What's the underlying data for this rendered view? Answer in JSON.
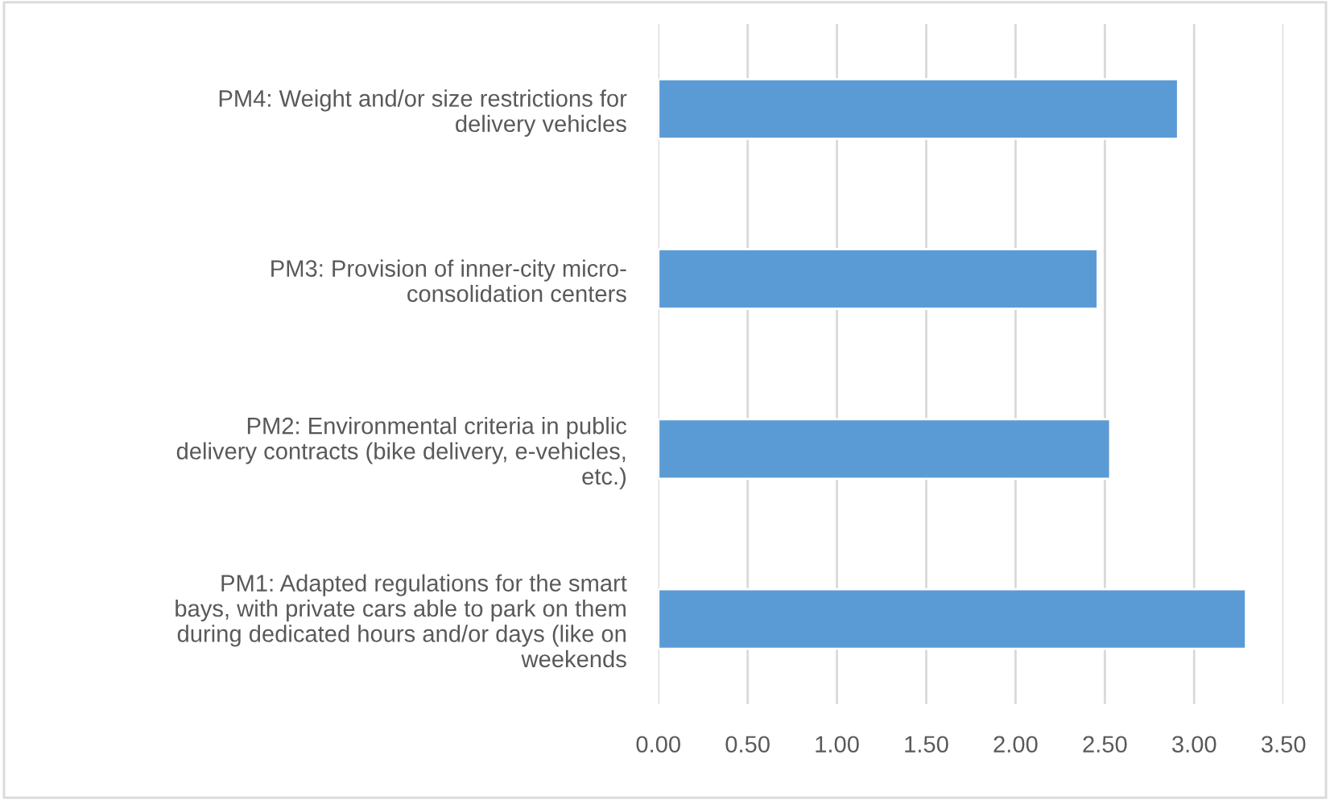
{
  "chart_data": {
    "type": "bar",
    "orientation": "horizontal",
    "categories": [
      "PM4: Weight and/or size restrictions for\ndelivery vehicles",
      "PM3: Provision of inner-city micro-\nconsolidation centers",
      "PM2: Environmental criteria in public\ndelivery contracts (bike delivery, e-vehicles,\netc.)",
      "PM1: Adapted regulations for the smart\nbays, with private cars able to park on them\nduring dedicated hours and/or days (like on\nweekends"
    ],
    "values": [
      2.91,
      2.46,
      2.53,
      3.29
    ],
    "color": "#5b9bd5",
    "xlim": [
      0,
      3.5
    ],
    "xticks": [
      {
        "value": 0,
        "label": "0.00"
      },
      {
        "value": 0.5,
        "label": "0.50"
      },
      {
        "value": 1,
        "label": "1.00"
      },
      {
        "value": 1.5,
        "label": "1.50"
      },
      {
        "value": 2,
        "label": "2.00"
      },
      {
        "value": 2.5,
        "label": "2.50"
      },
      {
        "value": 3,
        "label": "3.00"
      },
      {
        "value": 3.5,
        "label": "3.50"
      }
    ],
    "grid": "x"
  }
}
